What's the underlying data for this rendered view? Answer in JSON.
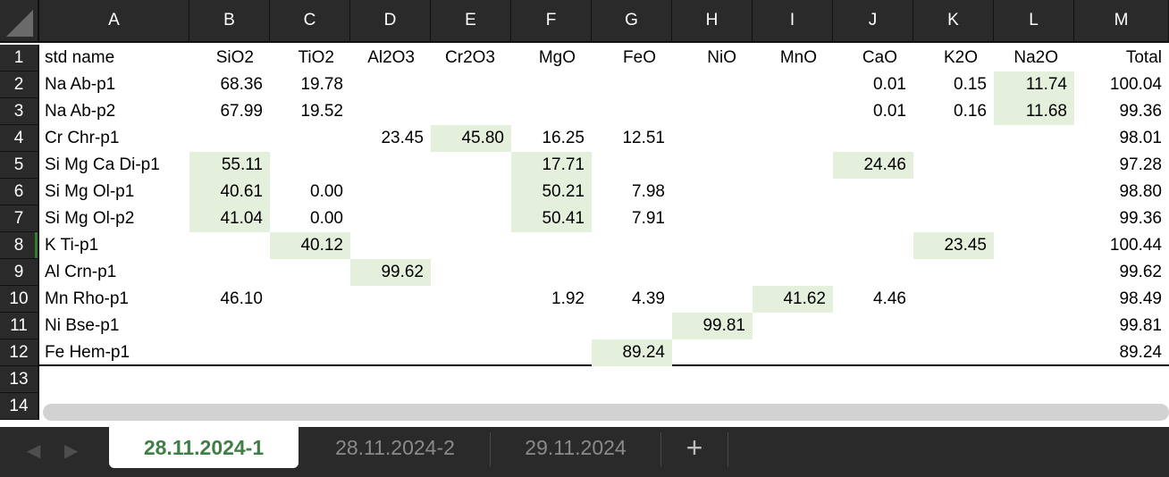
{
  "columns": [
    "A",
    "B",
    "C",
    "D",
    "E",
    "F",
    "G",
    "H",
    "I",
    "J",
    "K",
    "L",
    "M"
  ],
  "rows": [
    "1",
    "2",
    "3",
    "4",
    "5",
    "6",
    "7",
    "8",
    "9",
    "10",
    "11",
    "12",
    "13",
    "14"
  ],
  "header_row": [
    "std name",
    "SiO2",
    "TiO2",
    "Al2O3",
    "Cr2O3",
    "MgO",
    "FeO",
    "NiO",
    "MnO",
    "CaO",
    "K2O",
    "Na2O",
    "Total"
  ],
  "data_rows": [
    [
      "Na Ab-p1",
      "68.36",
      "19.78",
      "",
      "",
      "",
      "",
      "",
      "",
      "0.01",
      "0.15",
      "11.74",
      "100.04"
    ],
    [
      "Na Ab-p2",
      "67.99",
      "19.52",
      "",
      "",
      "",
      "",
      "",
      "",
      "0.01",
      "0.16",
      "11.68",
      "99.36"
    ],
    [
      "Cr Chr-p1",
      "",
      "",
      "23.45",
      "45.80",
      "16.25",
      "12.51",
      "",
      "",
      "",
      "",
      "",
      "98.01"
    ],
    [
      "Si Mg Ca Di-p1",
      "55.11",
      "",
      "",
      "",
      "17.71",
      "",
      "",
      "",
      "24.46",
      "",
      "",
      "97.28"
    ],
    [
      "Si Mg Ol-p1",
      "40.61",
      "0.00",
      "",
      "",
      "50.21",
      "7.98",
      "",
      "",
      "",
      "",
      "",
      "98.80"
    ],
    [
      "Si Mg Ol-p2",
      "41.04",
      "0.00",
      "",
      "",
      "50.41",
      "7.91",
      "",
      "",
      "",
      "",
      "",
      "99.36"
    ],
    [
      "K Ti-p1",
      "",
      "40.12",
      "",
      "",
      "",
      "",
      "",
      "",
      "",
      "23.45",
      "",
      "100.44"
    ],
    [
      "Al Crn-p1",
      "",
      "",
      "99.62",
      "",
      "",
      "",
      "",
      "",
      "",
      "",
      "",
      "99.62"
    ],
    [
      "Mn Rho-p1",
      "46.10",
      "",
      "",
      "",
      "1.92",
      "4.39",
      "",
      "41.62",
      "4.46",
      "",
      "",
      "98.49"
    ],
    [
      "Ni Bse-p1",
      "",
      "",
      "",
      "",
      "",
      "",
      "99.81",
      "",
      "",
      "",
      "",
      "99.81"
    ],
    [
      "Fe Hem-p1",
      "",
      "",
      "",
      "",
      "",
      "89.24",
      "",
      "",
      "",
      "",
      "",
      "89.24"
    ]
  ],
  "highlighted_cells": [
    [
      0,
      11
    ],
    [
      1,
      11
    ],
    [
      2,
      4
    ],
    [
      3,
      1
    ],
    [
      3,
      5
    ],
    [
      3,
      9
    ],
    [
      4,
      1
    ],
    [
      4,
      5
    ],
    [
      5,
      1
    ],
    [
      5,
      5
    ],
    [
      6,
      2
    ],
    [
      6,
      10
    ],
    [
      7,
      3
    ],
    [
      8,
      8
    ],
    [
      9,
      7
    ],
    [
      10,
      6
    ]
  ],
  "highlight_color": "#e4efdc",
  "active_row": "8",
  "tabs": [
    {
      "label": "28.11.2024-1",
      "active": true
    },
    {
      "label": "28.11.2024-2",
      "active": false
    },
    {
      "label": "29.11.2024",
      "active": false
    }
  ],
  "add_tab_label": "+",
  "nav": {
    "prev_icon": "◀",
    "next_icon": "▶"
  },
  "accent_color": "#3f7f46"
}
